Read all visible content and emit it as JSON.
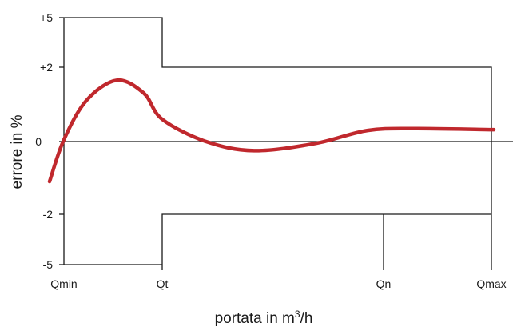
{
  "chart_data": {
    "type": "line",
    "xlabel": {
      "prefix": "portata in m",
      "sup": "3",
      "suffix": "/h"
    },
    "ylabel": "errore in %",
    "x_ticks": [
      "Qmin",
      "Qt",
      "Qn",
      "Qmax"
    ],
    "y_ticks": [
      "+5",
      "+2",
      "0",
      "-2",
      "-5"
    ],
    "tolerance_envelope": [
      {
        "from": "Qmin",
        "to": "Qt",
        "upper": "+5",
        "lower": "-5"
      },
      {
        "from": "Qt",
        "to": "Qmax",
        "upper": "+2",
        "lower": "-2"
      }
    ],
    "series": [
      {
        "color": "#c0282d",
        "points": [
          [
            "Qmin-",
            -1.1
          ],
          [
            "Qmin",
            0.05
          ],
          [
            "Qmin+",
            1.1
          ],
          [
            "peak",
            1.65
          ],
          [
            "Qt-",
            1.3
          ],
          [
            "Qt",
            0.6
          ],
          [
            "Qt+",
            0.0
          ],
          [
            "mid",
            -0.25
          ],
          [
            "mid+",
            -0.05
          ],
          [
            "Qn-",
            0.3
          ],
          [
            "Qn",
            0.35
          ],
          [
            "Qmax",
            0.32
          ]
        ]
      }
    ],
    "colors": {
      "curve": "#c0282d",
      "axes": "#1a1a1a"
    },
    "grid": false
  }
}
